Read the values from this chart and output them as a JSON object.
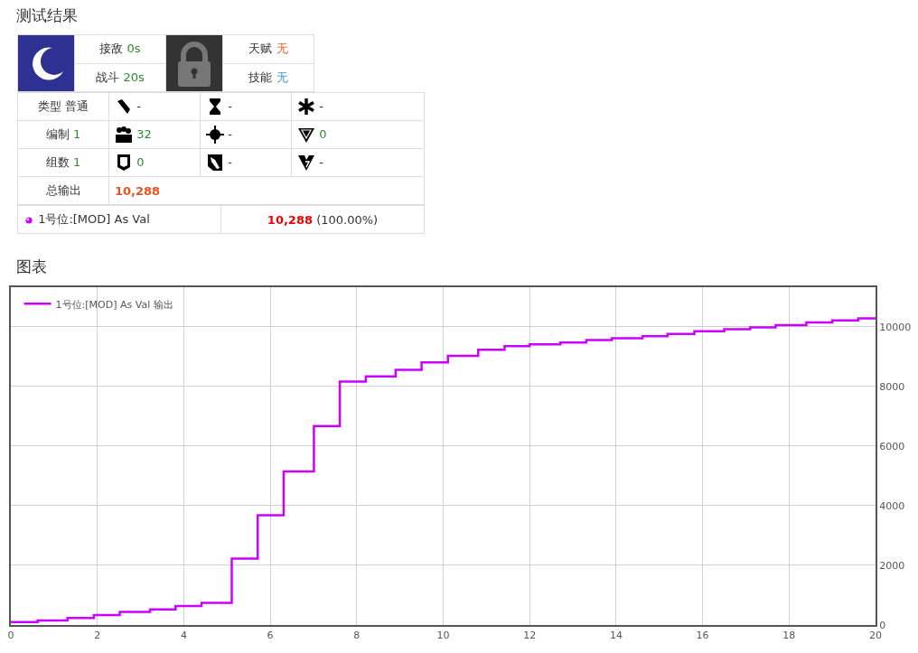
{
  "chart_data": [
    {
      "type": "other",
      "title": "测试结果",
      "annotations": [
        "接敌",
        "0s",
        "战斗",
        "20s",
        "天赋",
        "无",
        "技能",
        "无",
        "类型",
        "普通",
        "-",
        "-",
        "-",
        "编制",
        "1",
        "32",
        "-",
        "0",
        "组数",
        "1",
        "0",
        "-",
        "-",
        "总输出",
        "10,288",
        "1号位:[MOD] As Val",
        "10,288",
        "(100.00%)"
      ]
    },
    {
      "type": "step",
      "title": "图表",
      "x": [
        0,
        0.62,
        1.31,
        1.92,
        2.52,
        3.22,
        3.81,
        4.41,
        5.11,
        5.71,
        6.31,
        7.01,
        7.61,
        8.21,
        8.9,
        9.5,
        10.11,
        10.81,
        11.42,
        12.0,
        12.71,
        13.31,
        13.9,
        14.61,
        15.19,
        15.81,
        16.5,
        17.1,
        17.69,
        18.4,
        19.0,
        19.6,
        20
      ],
      "series": [
        {
          "name": "1号位:[MOD] As Val 输出",
          "color": "#cc00ff",
          "values": [
            100,
            150,
            235,
            330,
            440,
            525,
            635,
            740,
            2225,
            3680,
            5150,
            6675,
            8165,
            8340,
            8560,
            8810,
            9025,
            9230,
            9355,
            9415,
            9475,
            9560,
            9620,
            9690,
            9765,
            9855,
            9920,
            9980,
            10060,
            10145,
            10215,
            10288,
            10288
          ]
        }
      ],
      "xlim": [
        0,
        20
      ],
      "xticks": [
        0,
        2,
        4,
        6,
        8,
        10,
        12,
        14,
        16,
        18,
        20
      ],
      "ylim": [
        0,
        11330
      ],
      "yticks": [
        0,
        2000,
        4000,
        6000,
        8000,
        10000
      ],
      "grid": true,
      "legend": "top left"
    }
  ]
}
